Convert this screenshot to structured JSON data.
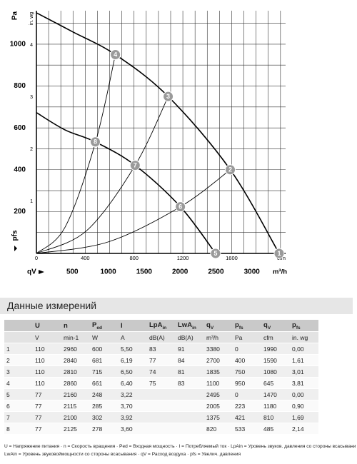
{
  "chart_data": {
    "type": "line",
    "y_axis_label": "Pa",
    "y2_axis_label": "in. wg",
    "y_axis_symbol": "pfs",
    "x_axis_symbol": "qV",
    "x_axis_unit": "m³/h",
    "x2_axis_unit": "cfm",
    "xlim": [
      0,
      3470
    ],
    "xticks": [
      500,
      1000,
      1500,
      2000,
      2500,
      3000
    ],
    "x2lim": [
      0,
      2042
    ],
    "x2ticks": [
      0,
      400,
      800,
      1200,
      1600
    ],
    "x2grid": [
      100,
      200,
      300,
      400,
      500,
      600,
      700,
      800,
      900,
      1000,
      1100,
      1200,
      1300,
      1400,
      1500,
      1600,
      1700,
      1800,
      1900,
      2000
    ],
    "ylim": [
      0,
      1160
    ],
    "yticks": [
      200,
      400,
      600,
      800,
      1000
    ],
    "ygrid": [
      100,
      200,
      300,
      400,
      500,
      600,
      700,
      800,
      900,
      1000,
      1100
    ],
    "y2lim": [
      0,
      4.66
    ],
    "y2ticks": [
      1,
      2,
      3,
      4
    ],
    "grid": true,
    "series": [
      {
        "color": "#000000",
        "width": 1.6,
        "x": [
          0,
          500,
          1100,
          1835,
          2700,
          3380
        ],
        "values": [
          1150,
          1060,
          950,
          750,
          400,
          0
        ]
      },
      {
        "color": "#000000",
        "width": 1.6,
        "x": [
          0,
          400,
          820,
          1375,
          2005,
          2495
        ],
        "values": [
          673,
          590,
          533,
          421,
          223,
          0
        ]
      },
      {
        "color": "#000000",
        "width": 0.9,
        "x": [
          0,
          400,
          820,
          1100
        ],
        "values": [
          0,
          126,
          528,
          950
        ]
      },
      {
        "color": "#000000",
        "width": 0.9,
        "x": [
          0,
          700,
          1375,
          1835
        ],
        "values": [
          0,
          109,
          421,
          750
        ]
      },
      {
        "color": "#000000",
        "width": 0.9,
        "x": [
          0,
          1000,
          2005,
          2700
        ],
        "values": [
          0,
          55,
          223,
          400
        ]
      }
    ],
    "marker_color": "#9a9a9a",
    "points": [
      {
        "label": "1",
        "x": 3380,
        "y": 0
      },
      {
        "label": "2",
        "x": 2700,
        "y": 400
      },
      {
        "label": "3",
        "x": 1835,
        "y": 750
      },
      {
        "label": "4",
        "x": 1100,
        "y": 950
      },
      {
        "label": "5",
        "x": 2495,
        "y": 0
      },
      {
        "label": "6",
        "x": 2005,
        "y": 223
      },
      {
        "label": "7",
        "x": 1375,
        "y": 421
      },
      {
        "label": "8",
        "x": 820,
        "y": 533
      }
    ]
  },
  "table": {
    "title": "Данные измерений",
    "header": [
      null,
      {
        "text": "U"
      },
      {
        "text": "n"
      },
      {
        "text": "P",
        "sub": "ed"
      },
      {
        "text": "I"
      },
      {
        "text": "LpA",
        "sub": "in"
      },
      {
        "text": "LwA",
        "sub": "in"
      },
      {
        "text": "q",
        "sub": "V"
      },
      {
        "text": "p",
        "sub": "fs"
      },
      {
        "text": "q",
        "sub": "V"
      },
      {
        "text": "p",
        "sub": "fs"
      }
    ],
    "units": [
      null,
      "V",
      "min-1",
      "W",
      "A",
      "dB(A)",
      "dB(A)",
      "m³/h",
      "Pa",
      "cfm",
      "in. wg"
    ],
    "rows": [
      [
        "1",
        "110",
        "2960",
        "600",
        "5,50",
        "83",
        "91",
        "3380",
        "0",
        "1990",
        "0,00"
      ],
      [
        "2",
        "110",
        "2840",
        "681",
        "6,19",
        "77",
        "84",
        "2700",
        "400",
        "1590",
        "1,61"
      ],
      [
        "3",
        "110",
        "2810",
        "715",
        "6,50",
        "74",
        "81",
        "1835",
        "750",
        "1080",
        "3,01"
      ],
      [
        "4",
        "110",
        "2860",
        "661",
        "6,40",
        "75",
        "83",
        "1100",
        "950",
        "645",
        "3,81"
      ],
      [
        "5",
        "77",
        "2160",
        "248",
        "3,22",
        null,
        null,
        "2495",
        "0",
        "1470",
        "0,00"
      ],
      [
        "6",
        "77",
        "2115",
        "285",
        "3,70",
        null,
        null,
        "2005",
        "223",
        "1180",
        "0,90"
      ],
      [
        "7",
        "77",
        "2100",
        "302",
        "3,92",
        null,
        null,
        "1375",
        "421",
        "810",
        "1,69"
      ],
      [
        "8",
        "77",
        "2125",
        "278",
        "3,60",
        null,
        null,
        "820",
        "533",
        "485",
        "2,14"
      ]
    ],
    "footnote": [
      "U = Напряжение питания · n = Скорость вращения · Ped = Входная мощность · I = Потребляемый ток · LpAin = Уровень звуков. давления со стороны всасывания",
      "LwAin = Уровень звуковоймощности со стороны всасывания · qV = Расход воздуха · pfs = Увелич. давления"
    ]
  }
}
